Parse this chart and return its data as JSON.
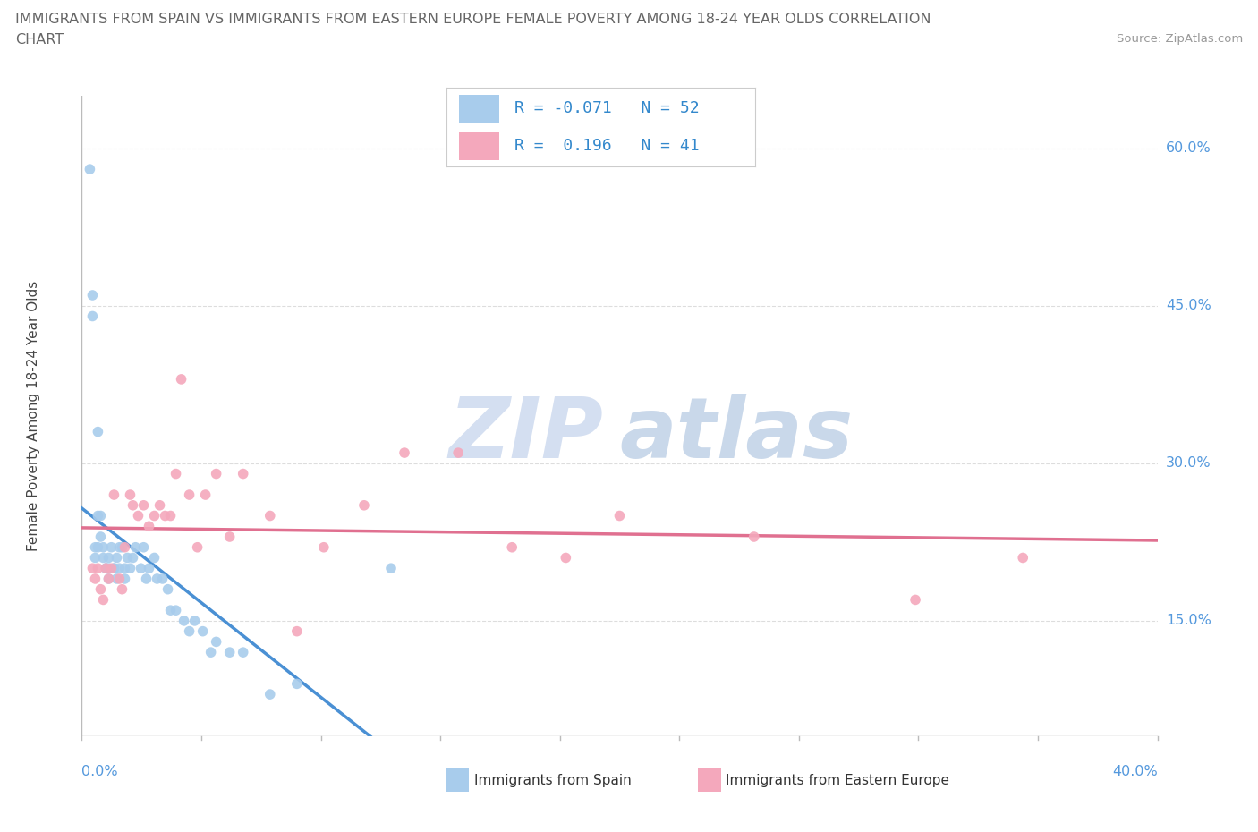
{
  "title_line1": "IMMIGRANTS FROM SPAIN VS IMMIGRANTS FROM EASTERN EUROPE FEMALE POVERTY AMONG 18-24 YEAR OLDS CORRELATION",
  "title_line2": "CHART",
  "source": "Source: ZipAtlas.com",
  "ylabel": "Female Poverty Among 18-24 Year Olds",
  "ytick_vals": [
    0.15,
    0.3,
    0.45,
    0.6
  ],
  "ytick_labels": [
    "15.0%",
    "30.0%",
    "45.0%",
    "60.0%"
  ],
  "xlim": [
    0.0,
    0.4
  ],
  "ylim": [
    0.04,
    0.65
  ],
  "r_spain": -0.071,
  "n_spain": 52,
  "r_eastern": 0.196,
  "n_eastern": 41,
  "color_spain": "#A8CCEC",
  "color_eastern": "#F4A8BC",
  "color_trend_spain": "#4A90D4",
  "color_trend_eastern": "#E07090",
  "color_dashed": "#BBBBBB",
  "color_grid": "#DDDDDD",
  "color_axis": "#BBBBBB",
  "color_ytick": "#5599DD",
  "color_xtick": "#5599DD",
  "watermark_zip": "ZIP",
  "watermark_atlas": "atlas",
  "legend_box_color": "#EEEEEE",
  "spain_x": [
    0.003,
    0.004,
    0.004,
    0.005,
    0.005,
    0.006,
    0.006,
    0.006,
    0.007,
    0.007,
    0.008,
    0.008,
    0.009,
    0.009,
    0.01,
    0.01,
    0.01,
    0.011,
    0.012,
    0.012,
    0.013,
    0.013,
    0.014,
    0.014,
    0.015,
    0.016,
    0.016,
    0.017,
    0.018,
    0.019,
    0.02,
    0.022,
    0.023,
    0.024,
    0.025,
    0.027,
    0.028,
    0.03,
    0.032,
    0.033,
    0.035,
    0.038,
    0.04,
    0.042,
    0.045,
    0.048,
    0.05,
    0.055,
    0.06,
    0.07,
    0.08,
    0.115
  ],
  "spain_y": [
    0.58,
    0.46,
    0.44,
    0.22,
    0.21,
    0.33,
    0.25,
    0.22,
    0.25,
    0.23,
    0.22,
    0.21,
    0.2,
    0.2,
    0.21,
    0.2,
    0.19,
    0.22,
    0.2,
    0.2,
    0.21,
    0.19,
    0.22,
    0.2,
    0.22,
    0.2,
    0.19,
    0.21,
    0.2,
    0.21,
    0.22,
    0.2,
    0.22,
    0.19,
    0.2,
    0.21,
    0.19,
    0.19,
    0.18,
    0.16,
    0.16,
    0.15,
    0.14,
    0.15,
    0.14,
    0.12,
    0.13,
    0.12,
    0.12,
    0.08,
    0.09,
    0.2
  ],
  "eastern_x": [
    0.004,
    0.005,
    0.006,
    0.007,
    0.008,
    0.009,
    0.01,
    0.011,
    0.012,
    0.014,
    0.015,
    0.016,
    0.018,
    0.019,
    0.021,
    0.023,
    0.025,
    0.027,
    0.029,
    0.031,
    0.033,
    0.035,
    0.037,
    0.04,
    0.043,
    0.046,
    0.05,
    0.055,
    0.06,
    0.07,
    0.08,
    0.09,
    0.105,
    0.12,
    0.14,
    0.16,
    0.18,
    0.2,
    0.25,
    0.31,
    0.35
  ],
  "eastern_y": [
    0.2,
    0.19,
    0.2,
    0.18,
    0.17,
    0.2,
    0.19,
    0.2,
    0.27,
    0.19,
    0.18,
    0.22,
    0.27,
    0.26,
    0.25,
    0.26,
    0.24,
    0.25,
    0.26,
    0.25,
    0.25,
    0.29,
    0.38,
    0.27,
    0.22,
    0.27,
    0.29,
    0.23,
    0.29,
    0.25,
    0.14,
    0.22,
    0.26,
    0.31,
    0.31,
    0.22,
    0.21,
    0.25,
    0.23,
    0.17,
    0.21
  ]
}
